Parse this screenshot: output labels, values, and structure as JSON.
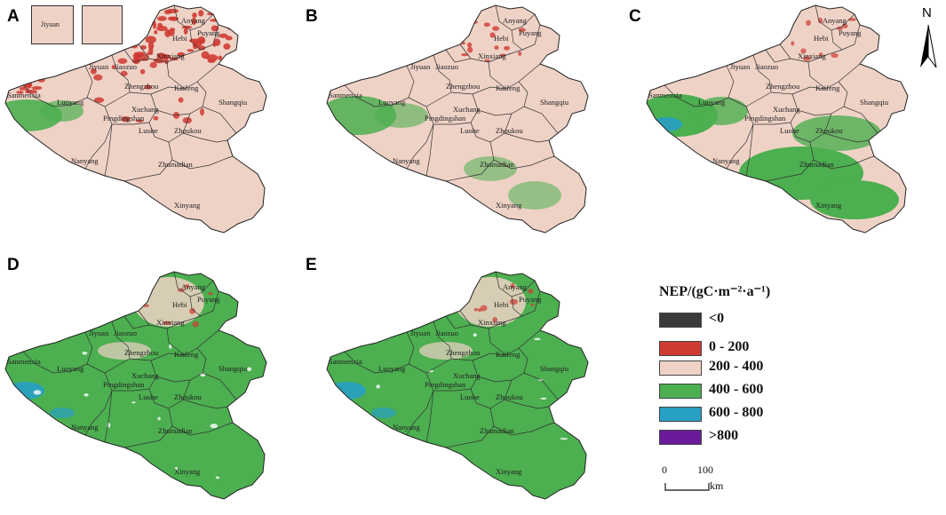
{
  "panels": [
    {
      "letter": "A",
      "class": "low"
    },
    {
      "letter": "B",
      "class": "light"
    },
    {
      "letter": "C",
      "class": "mid"
    },
    {
      "letter": "D",
      "class": "high"
    },
    {
      "letter": "E",
      "class": "high"
    }
  ],
  "cities": [
    "Anyang",
    "Puyang",
    "Hebi",
    "Xinxiang",
    "Jiaozuo",
    "Jiyuan",
    "Sanmenxia",
    "Luoyang",
    "Zhengzhou",
    "Kaifeng",
    "Shangqiu",
    "Pingdingshan",
    "Xuchang",
    "Luohe",
    "Zhoukou",
    "Nanyang",
    "Zhumadian",
    "Xinyang"
  ],
  "inset": {
    "label": "Jiyuan"
  },
  "north_arrow": {
    "label": "N"
  },
  "legend": {
    "title": "NEP/(gC·m⁻²·a⁻¹)",
    "items": [
      {
        "label": "<0",
        "color": "#3a3a3a"
      },
      {
        "label": "0 - 200",
        "color": "#cf3b32"
      },
      {
        "label": "200 - 400",
        "color": "#efd2c6"
      },
      {
        "label": "400 - 600",
        "color": "#4caf50"
      },
      {
        "label": "600 - 800",
        "color": "#27a0c4"
      },
      {
        "label": ">800",
        "color": "#6a1b9a"
      }
    ]
  },
  "scale_bar": {
    "start": "0",
    "end": "100",
    "unit": "km"
  }
}
